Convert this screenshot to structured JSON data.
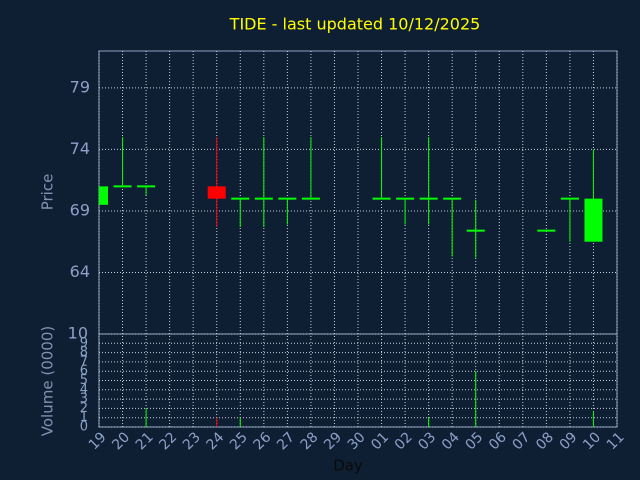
{
  "chart_data": {
    "type": "candlestick",
    "title": "TIDE - last updated 10/12/2025",
    "categories": [
      "19",
      "20",
      "21",
      "22",
      "23",
      "24",
      "25",
      "26",
      "27",
      "28",
      "29",
      "30",
      "01",
      "02",
      "03",
      "04",
      "05",
      "06",
      "07",
      "08",
      "09",
      "10",
      "11"
    ],
    "open": [
      69.5,
      71,
      71,
      null,
      null,
      71,
      70,
      70,
      70,
      70,
      null,
      null,
      70,
      70,
      70,
      70,
      67.4,
      null,
      null,
      67.4,
      70,
      66.5,
      null
    ],
    "high": [
      71,
      75,
      71,
      null,
      null,
      75,
      70,
      75,
      70,
      75,
      null,
      null,
      75,
      70,
      75,
      70,
      69.9,
      null,
      null,
      67.4,
      70,
      74,
      null
    ],
    "low": [
      69.5,
      71,
      70.3,
      null,
      null,
      67.7,
      67.7,
      67.7,
      67.9,
      70,
      null,
      null,
      70,
      67.9,
      67.9,
      65.3,
      65.2,
      null,
      null,
      67.4,
      66.5,
      66.5,
      null
    ],
    "close": [
      71,
      71,
      71,
      null,
      null,
      70,
      70,
      70,
      70,
      70,
      null,
      null,
      70,
      70,
      70,
      70,
      67.4,
      null,
      null,
      67.4,
      70,
      70,
      null
    ],
    "up_color": "#00ff00",
    "down_color": "#ff0000",
    "ylabel": "Price",
    "ylim": [
      59,
      82
    ],
    "yticks": [
      64,
      69,
      74,
      79
    ],
    "volume": [
      0,
      0,
      2,
      null,
      null,
      1,
      1,
      0,
      0,
      0,
      null,
      null,
      0,
      0,
      1,
      0,
      6,
      null,
      null,
      0,
      0,
      1.7,
      null
    ],
    "volume_label": "Volume (0000)",
    "volume_ylim": [
      0,
      10
    ],
    "volume_yticks": [
      0,
      1,
      2,
      3,
      4,
      5,
      6,
      7,
      8,
      9,
      10
    ],
    "xlabel": "Day",
    "grid": true
  }
}
